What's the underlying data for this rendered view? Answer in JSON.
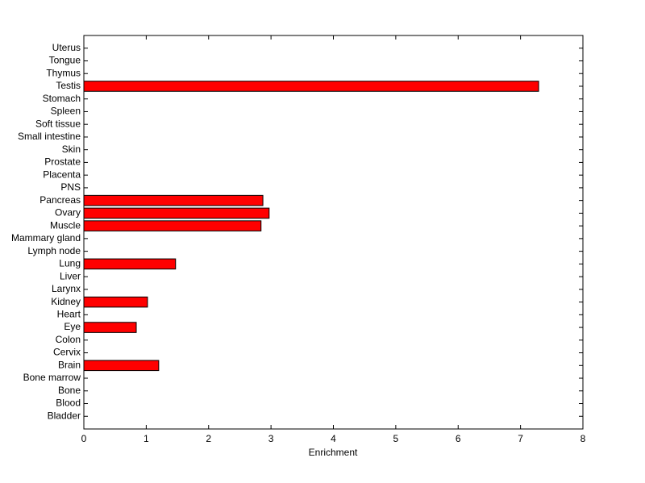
{
  "chart_data": {
    "type": "hbar",
    "x_label": "Enrichment",
    "categories": [
      "Uterus",
      "Tongue",
      "Thymus",
      "Testis",
      "Stomach",
      "Spleen",
      "Soft tissue",
      "Small intestine",
      "Skin",
      "Prostate",
      "Placenta",
      "PNS",
      "Pancreas",
      "Ovary",
      "Muscle",
      "Mammary gland",
      "Lymph node",
      "Lung",
      "Liver",
      "Larynx",
      "Kidney",
      "Heart",
      "Eye",
      "Colon",
      "Cervix",
      "Brain",
      "Bone marrow",
      "Bone",
      "Blood",
      "Bladder"
    ],
    "values": [
      0,
      0,
      0,
      7.29,
      0,
      0,
      0,
      0,
      0,
      0,
      0,
      0,
      2.87,
      2.97,
      2.84,
      0,
      0,
      1.47,
      0,
      0,
      1.02,
      0,
      0.84,
      0,
      0,
      1.2,
      0,
      0,
      0,
      0
    ],
    "color": "#ff0000",
    "xlim": [
      0,
      8
    ],
    "xticks": [
      0,
      1,
      2,
      3,
      4,
      5,
      6,
      7,
      8
    ]
  }
}
